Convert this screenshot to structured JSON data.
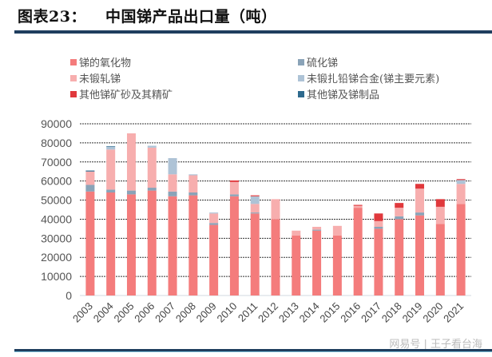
{
  "header": {
    "figure_label": "图表23：",
    "title": "中国锑产品出口量（吨）"
  },
  "watermark": "网易号 | 王子看台海",
  "chart_data": {
    "type": "bar",
    "stacked": true,
    "title": "中国锑产品出口量（吨）",
    "xlabel": "",
    "ylabel": "",
    "ylim": [
      0,
      90000
    ],
    "yticks": [
      0,
      10000,
      20000,
      30000,
      40000,
      50000,
      60000,
      70000,
      80000,
      90000
    ],
    "grid": true,
    "legend_position": "top",
    "categories": [
      "2003",
      "2004",
      "2005",
      "2006",
      "2007",
      "2008",
      "2009",
      "2010",
      "2011",
      "2012",
      "2013",
      "2014",
      "2015",
      "2016",
      "2017",
      "2018",
      "2019",
      "2020",
      "2021"
    ],
    "series": [
      {
        "name": "锑的氧化物",
        "color": "#f47c7c",
        "values": [
          54500,
          54000,
          53000,
          55000,
          52000,
          52500,
          37000,
          52000,
          43000,
          40000,
          31500,
          34000,
          31500,
          46000,
          35000,
          40000,
          42000,
          37500,
          48000
        ]
      },
      {
        "name": "硫化锑",
        "color": "#8aa3b8",
        "values": [
          3500,
          1500,
          2000,
          1500,
          2500,
          1500,
          1000,
          1000,
          500,
          0,
          0,
          500,
          0,
          0,
          1000,
          1500,
          1500,
          0,
          0
        ]
      },
      {
        "name": "未锻轧锑",
        "color": "#f7aeae",
        "values": [
          7000,
          21000,
          30000,
          21000,
          9000,
          9000,
          5000,
          6500,
          4500,
          10500,
          2500,
          1500,
          5000,
          1000,
          3000,
          4500,
          12500,
          9000,
          10500
        ]
      },
      {
        "name": "未锻扎铅锑合金(锑主要元素)",
        "color": "#aec3d6",
        "values": [
          0,
          1500,
          0,
          1000,
          8500,
          500,
          500,
          0,
          4000,
          0,
          0,
          0,
          0,
          0,
          0,
          0,
          0,
          0,
          2000
        ]
      },
      {
        "name": "其他锑矿砂及其精矿",
        "color": "#e0383c",
        "values": [
          0,
          0,
          0,
          0,
          0,
          0,
          0,
          800,
          500,
          0,
          0,
          0,
          0,
          500,
          4000,
          2500,
          2500,
          4000,
          500
        ]
      },
      {
        "name": "其他锑及锑制品",
        "color": "#2e6a8e",
        "values": [
          500,
          300,
          0,
          0,
          0,
          0,
          0,
          0,
          0,
          0,
          0,
          0,
          0,
          0,
          0,
          0,
          0,
          0,
          0
        ]
      }
    ]
  }
}
